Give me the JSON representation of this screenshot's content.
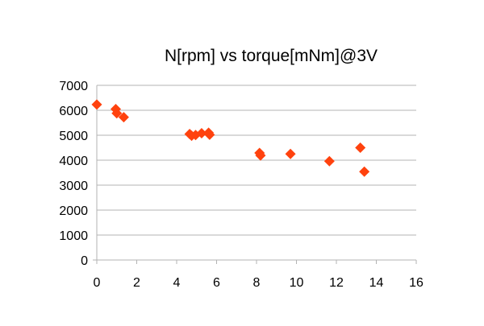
{
  "chart_data": {
    "type": "scatter",
    "title": "N[rpm] vs torque[mNm]@3V",
    "xlabel": "",
    "ylabel": "",
    "xlim": [
      0,
      16
    ],
    "ylim": [
      0,
      7000
    ],
    "x_ticks": [
      0,
      2,
      4,
      6,
      8,
      10,
      12,
      14,
      16
    ],
    "y_ticks": [
      0,
      1000,
      2000,
      3000,
      4000,
      5000,
      6000,
      7000
    ],
    "grid": "horizontal",
    "legend": "none",
    "marker": "diamond",
    "colors": {
      "marker": "#ff420e",
      "grid": "#b3b3b3",
      "axis": "#b3b3b3",
      "text": "#000000"
    },
    "points": [
      {
        "x": 0.0,
        "y": 6230
      },
      {
        "x": 0.95,
        "y": 6050
      },
      {
        "x": 1.0,
        "y": 5880
      },
      {
        "x": 1.35,
        "y": 5720
      },
      {
        "x": 4.65,
        "y": 5050
      },
      {
        "x": 4.75,
        "y": 4980
      },
      {
        "x": 4.95,
        "y": 5010
      },
      {
        "x": 5.25,
        "y": 5080
      },
      {
        "x": 5.6,
        "y": 5100
      },
      {
        "x": 5.65,
        "y": 5020
      },
      {
        "x": 8.15,
        "y": 4290
      },
      {
        "x": 8.2,
        "y": 4190
      },
      {
        "x": 9.7,
        "y": 4250
      },
      {
        "x": 11.65,
        "y": 3960
      },
      {
        "x": 13.2,
        "y": 4500
      },
      {
        "x": 13.4,
        "y": 3540
      }
    ]
  }
}
